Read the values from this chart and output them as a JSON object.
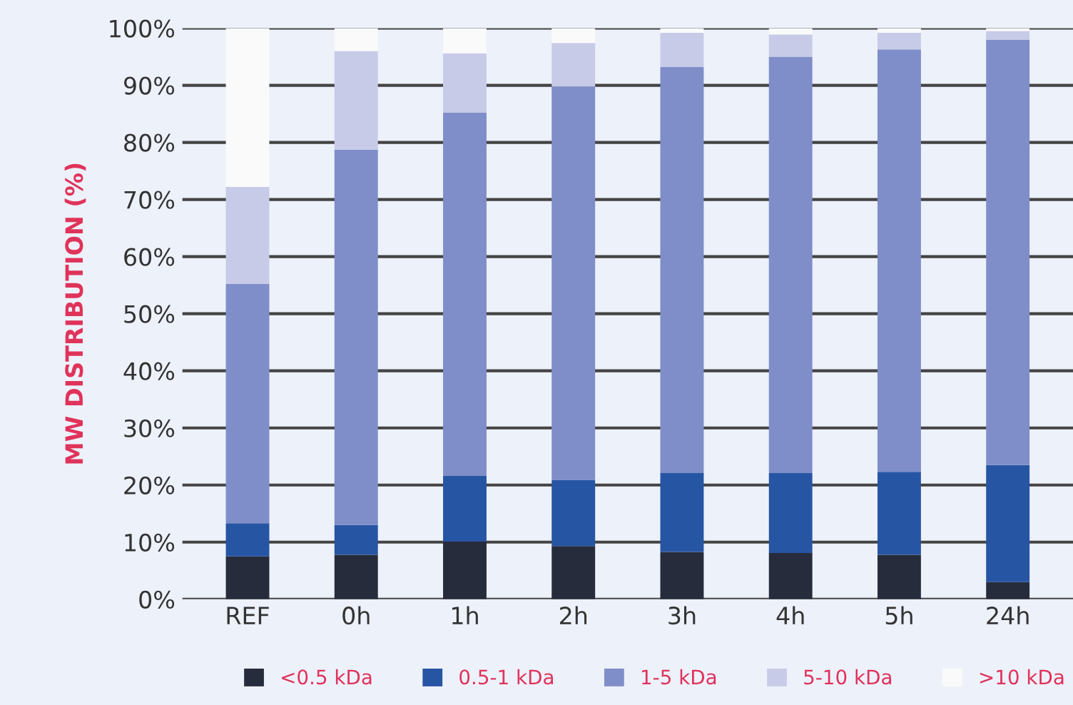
{
  "chart_data": {
    "type": "bar",
    "stacked": true,
    "ylabel": "MW DISTRIBUTION (%)",
    "categories": [
      "REF",
      "0h",
      "1h",
      "2h",
      "3h",
      "4h",
      "5h",
      "24h"
    ],
    "series": [
      {
        "name": "<0.5 kDa",
        "color": "#262c3b",
        "values": [
          7.5,
          7.8,
          10.1,
          9.3,
          8.3,
          8.1,
          7.8,
          3.0
        ]
      },
      {
        "name": "0.5-1 kDa",
        "color": "#2655a3",
        "values": [
          5.8,
          5.2,
          11.5,
          11.6,
          13.8,
          14.0,
          14.5,
          20.5
        ]
      },
      {
        "name": "1-5 kDa",
        "color": "#7f8ec8",
        "values": [
          41.9,
          65.7,
          63.6,
          68.9,
          71.1,
          72.9,
          74.0,
          74.5
        ]
      },
      {
        "name": "5-10 kDa",
        "color": "#c8cbe8",
        "values": [
          17.0,
          17.3,
          10.4,
          7.6,
          6.0,
          3.9,
          2.9,
          1.5
        ]
      },
      {
        "name": ">10 kDa",
        "color": "#fafafa",
        "values": [
          27.8,
          4.0,
          4.4,
          2.6,
          0.8,
          1.1,
          0.8,
          0.5
        ]
      }
    ],
    "ylim": [
      0,
      100
    ],
    "yticks": [
      {
        "value": 0,
        "label": "0%"
      },
      {
        "value": 10,
        "label": "10%"
      },
      {
        "value": 20,
        "label": "20%"
      },
      {
        "value": 30,
        "label": "30%"
      },
      {
        "value": 40,
        "label": "40%"
      },
      {
        "value": 50,
        "label": "50%"
      },
      {
        "value": 60,
        "label": "60%"
      },
      {
        "value": 70,
        "label": "70%"
      },
      {
        "value": 80,
        "label": "80%"
      },
      {
        "value": 90,
        "label": "90%"
      },
      {
        "value": 100,
        "label": "100%"
      }
    ],
    "grid": "y",
    "legend": "bottom right"
  }
}
